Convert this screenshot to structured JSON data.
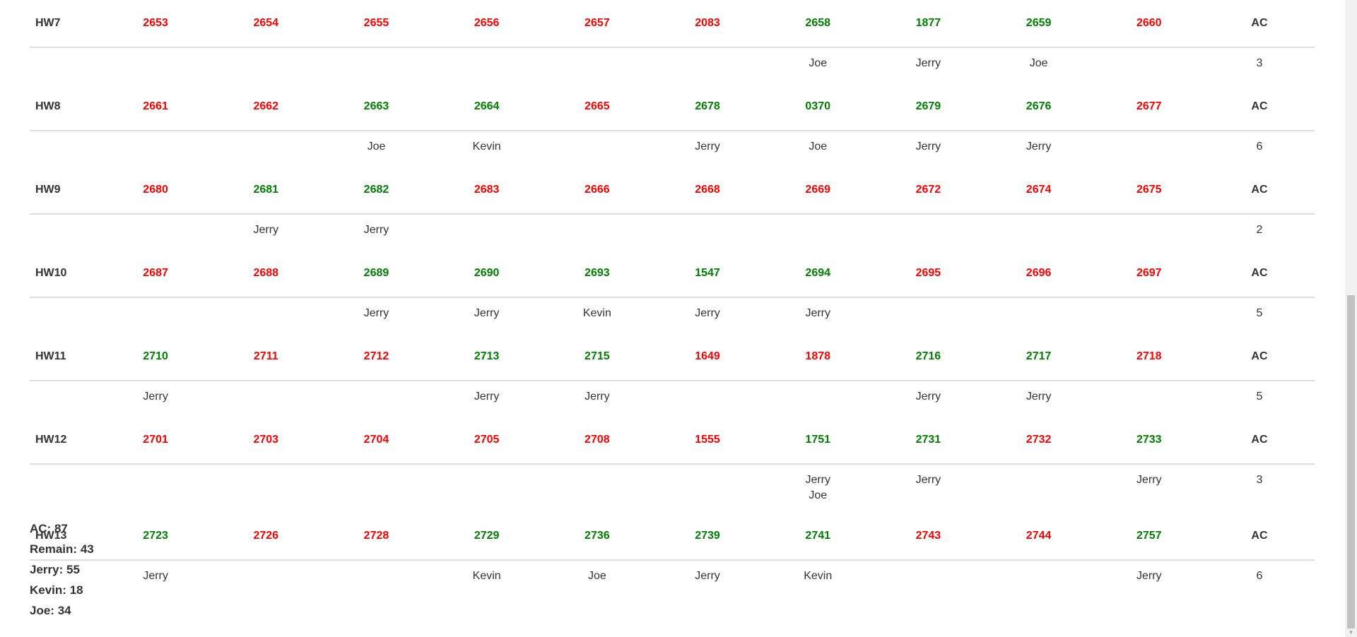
{
  "colors": {
    "solved": "#008000",
    "unsolved": "#ff0000",
    "text": "#333333",
    "divider": "#dddddd"
  },
  "groups": [
    {
      "label": "HW7",
      "cells": [
        {
          "id": "2653",
          "solved": false,
          "names": []
        },
        {
          "id": "2654",
          "solved": false,
          "names": []
        },
        {
          "id": "2655",
          "solved": false,
          "names": []
        },
        {
          "id": "2656",
          "solved": false,
          "names": []
        },
        {
          "id": "2657",
          "solved": false,
          "names": []
        },
        {
          "id": "2083",
          "solved": false,
          "names": []
        },
        {
          "id": "2658",
          "solved": true,
          "names": [
            "Joe"
          ]
        },
        {
          "id": "1877",
          "solved": true,
          "names": [
            "Jerry"
          ]
        },
        {
          "id": "2659",
          "solved": true,
          "names": [
            "Joe"
          ]
        },
        {
          "id": "2660",
          "solved": false,
          "names": []
        }
      ],
      "ac_label": "AC",
      "ac_count": "3"
    },
    {
      "label": "HW8",
      "cells": [
        {
          "id": "2661",
          "solved": false,
          "names": []
        },
        {
          "id": "2662",
          "solved": false,
          "names": []
        },
        {
          "id": "2663",
          "solved": true,
          "names": [
            "Joe"
          ]
        },
        {
          "id": "2664",
          "solved": true,
          "names": [
            "Kevin"
          ]
        },
        {
          "id": "2665",
          "solved": false,
          "names": []
        },
        {
          "id": "2678",
          "solved": true,
          "names": [
            "Jerry"
          ]
        },
        {
          "id": "0370",
          "solved": true,
          "names": [
            "Joe"
          ]
        },
        {
          "id": "2679",
          "solved": true,
          "names": [
            "Jerry"
          ]
        },
        {
          "id": "2676",
          "solved": true,
          "names": [
            "Jerry"
          ]
        },
        {
          "id": "2677",
          "solved": false,
          "names": []
        }
      ],
      "ac_label": "AC",
      "ac_count": "6"
    },
    {
      "label": "HW9",
      "cells": [
        {
          "id": "2680",
          "solved": false,
          "names": []
        },
        {
          "id": "2681",
          "solved": true,
          "names": [
            "Jerry"
          ]
        },
        {
          "id": "2682",
          "solved": true,
          "names": [
            "Jerry"
          ]
        },
        {
          "id": "2683",
          "solved": false,
          "names": []
        },
        {
          "id": "2666",
          "solved": false,
          "names": []
        },
        {
          "id": "2668",
          "solved": false,
          "names": []
        },
        {
          "id": "2669",
          "solved": false,
          "names": []
        },
        {
          "id": "2672",
          "solved": false,
          "names": []
        },
        {
          "id": "2674",
          "solved": false,
          "names": []
        },
        {
          "id": "2675",
          "solved": false,
          "names": []
        }
      ],
      "ac_label": "AC",
      "ac_count": "2"
    },
    {
      "label": "HW10",
      "cells": [
        {
          "id": "2687",
          "solved": false,
          "names": []
        },
        {
          "id": "2688",
          "solved": false,
          "names": []
        },
        {
          "id": "2689",
          "solved": true,
          "names": [
            "Jerry"
          ]
        },
        {
          "id": "2690",
          "solved": true,
          "names": [
            "Jerry"
          ]
        },
        {
          "id": "2693",
          "solved": true,
          "names": [
            "Kevin"
          ]
        },
        {
          "id": "1547",
          "solved": true,
          "names": [
            "Jerry"
          ]
        },
        {
          "id": "2694",
          "solved": true,
          "names": [
            "Jerry"
          ]
        },
        {
          "id": "2695",
          "solved": false,
          "names": []
        },
        {
          "id": "2696",
          "solved": false,
          "names": []
        },
        {
          "id": "2697",
          "solved": false,
          "names": []
        }
      ],
      "ac_label": "AC",
      "ac_count": "5"
    },
    {
      "label": "HW11",
      "cells": [
        {
          "id": "2710",
          "solved": true,
          "names": [
            "Jerry"
          ]
        },
        {
          "id": "2711",
          "solved": false,
          "names": []
        },
        {
          "id": "2712",
          "solved": false,
          "names": []
        },
        {
          "id": "2713",
          "solved": true,
          "names": [
            "Jerry"
          ]
        },
        {
          "id": "2715",
          "solved": true,
          "names": [
            "Jerry"
          ]
        },
        {
          "id": "1649",
          "solved": false,
          "names": []
        },
        {
          "id": "1878",
          "solved": false,
          "names": []
        },
        {
          "id": "2716",
          "solved": true,
          "names": [
            "Jerry"
          ]
        },
        {
          "id": "2717",
          "solved": true,
          "names": [
            "Jerry"
          ]
        },
        {
          "id": "2718",
          "solved": false,
          "names": []
        }
      ],
      "ac_label": "AC",
      "ac_count": "5"
    },
    {
      "label": "HW12",
      "cells": [
        {
          "id": "2701",
          "solved": false,
          "names": []
        },
        {
          "id": "2703",
          "solved": false,
          "names": []
        },
        {
          "id": "2704",
          "solved": false,
          "names": []
        },
        {
          "id": "2705",
          "solved": false,
          "names": []
        },
        {
          "id": "2708",
          "solved": false,
          "names": []
        },
        {
          "id": "1555",
          "solved": false,
          "names": []
        },
        {
          "id": "1751",
          "solved": true,
          "names": [
            "Jerry",
            "Joe"
          ]
        },
        {
          "id": "2731",
          "solved": true,
          "names": [
            "Jerry"
          ]
        },
        {
          "id": "2732",
          "solved": false,
          "names": []
        },
        {
          "id": "2733",
          "solved": true,
          "names": [
            "Jerry"
          ]
        }
      ],
      "ac_label": "AC",
      "ac_count": "3"
    },
    {
      "label": "HW13",
      "cells": [
        {
          "id": "2723",
          "solved": true,
          "names": [
            "Jerry"
          ]
        },
        {
          "id": "2726",
          "solved": false,
          "names": []
        },
        {
          "id": "2728",
          "solved": false,
          "names": []
        },
        {
          "id": "2729",
          "solved": true,
          "names": [
            "Kevin"
          ]
        },
        {
          "id": "2736",
          "solved": true,
          "names": [
            "Joe"
          ]
        },
        {
          "id": "2739",
          "solved": true,
          "names": [
            "Jerry"
          ]
        },
        {
          "id": "2741",
          "solved": true,
          "names": [
            "Kevin"
          ]
        },
        {
          "id": "2743",
          "solved": false,
          "names": []
        },
        {
          "id": "2744",
          "solved": false,
          "names": []
        },
        {
          "id": "2757",
          "solved": true,
          "names": [
            "Jerry"
          ]
        }
      ],
      "ac_label": "AC",
      "ac_count": "6"
    }
  ],
  "summary": [
    {
      "label": "AC",
      "value": "87"
    },
    {
      "label": "Remain",
      "value": "43"
    },
    {
      "label": "Jerry",
      "value": "55"
    },
    {
      "label": "Kevin",
      "value": "18"
    },
    {
      "label": "Joe",
      "value": "34"
    }
  ],
  "summary_separator": ": "
}
